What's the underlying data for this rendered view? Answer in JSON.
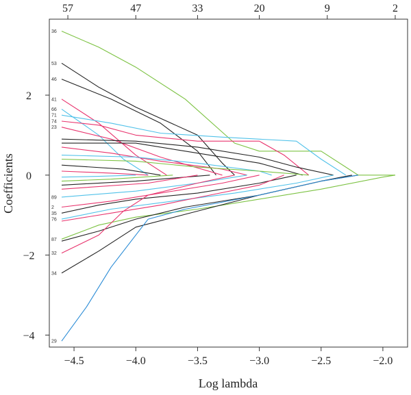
{
  "chart_data": {
    "type": "line",
    "title": "",
    "xlabel": "Log lambda",
    "ylabel": "Coefficients",
    "xlim": [
      -4.7,
      -1.8
    ],
    "ylim": [
      -4.3,
      3.9
    ],
    "x_ticks": [
      -4.5,
      -4.0,
      -3.5,
      -3.0,
      -2.5,
      -2.0
    ],
    "x_tick_labels": [
      "−4.5",
      "−4.0",
      "−3.5",
      "−3.0",
      "−2.5",
      "−2.0"
    ],
    "y_ticks": [
      -4,
      -2,
      0,
      2
    ],
    "y_tick_labels": [
      "−4",
      "−2",
      "0",
      "2"
    ],
    "top_ticks": [
      {
        "x": -4.55,
        "label": "57"
      },
      {
        "x": -4.0,
        "label": "47"
      },
      {
        "x": -3.5,
        "label": "33"
      },
      {
        "x": -3.0,
        "label": "20"
      },
      {
        "x": -2.45,
        "label": "9"
      },
      {
        "x": -1.9,
        "label": "2"
      }
    ],
    "grid": false,
    "legend": "none",
    "series": [
      {
        "label": "36",
        "color": "#7cc242",
        "x": [
          -4.6,
          -4.3,
          -4.0,
          -3.6,
          -3.2,
          -3.0,
          -2.5,
          -2.2,
          -1.9
        ],
        "values": [
          3.6,
          3.2,
          2.7,
          1.9,
          0.8,
          0.6,
          0.6,
          0.0,
          0.0
        ]
      },
      {
        "label": "53",
        "color": "#222222",
        "x": [
          -4.6,
          -4.3,
          -4.0,
          -3.5,
          -3.3,
          -3.2
        ],
        "values": [
          2.8,
          2.2,
          1.7,
          1.0,
          0.3,
          0.0
        ]
      },
      {
        "label": "46",
        "color": "#222222",
        "x": [
          -4.6,
          -4.2,
          -3.8,
          -3.5,
          -3.35
        ],
        "values": [
          2.4,
          1.9,
          1.3,
          0.6,
          0.0
        ]
      },
      {
        "label": "41",
        "color": "#e8336d",
        "x": [
          -4.6,
          -4.3,
          -4.0,
          -3.75
        ],
        "values": [
          1.9,
          1.3,
          0.5,
          0.0
        ]
      },
      {
        "label": "66",
        "color": "#4fc1e9",
        "x": [
          -4.6,
          -4.3,
          -4.1,
          -3.9
        ],
        "values": [
          1.65,
          1.0,
          0.4,
          0.0
        ]
      },
      {
        "label": "71",
        "color": "#4fc1e9",
        "x": [
          -4.6,
          -4.2,
          -3.8,
          -3.3,
          -2.7,
          -2.5,
          -2.3
        ],
        "values": [
          1.5,
          1.3,
          1.05,
          0.95,
          0.85,
          0.4,
          0.0
        ]
      },
      {
        "label": "74",
        "color": "#e8336d",
        "x": [
          -4.6,
          -4.3,
          -4.0,
          -3.5,
          -3.0,
          -2.8,
          -2.6
        ],
        "values": [
          1.35,
          1.25,
          1.0,
          0.85,
          0.85,
          0.5,
          0.0
        ]
      },
      {
        "label": "23",
        "color": "#e8336d",
        "x": [
          -4.6,
          -4.2,
          -3.8,
          -3.3
        ],
        "values": [
          1.2,
          0.9,
          0.45,
          0.0
        ]
      },
      {
        "label": "",
        "color": "#222222",
        "x": [
          -4.6,
          -4.0,
          -3.5,
          -3.0,
          -2.7,
          -2.4
        ],
        "values": [
          0.9,
          0.85,
          0.7,
          0.45,
          0.2,
          0.0
        ]
      },
      {
        "label": "",
        "color": "#222222",
        "x": [
          -4.6,
          -4.0,
          -3.5,
          -3.0,
          -2.65
        ],
        "values": [
          0.8,
          0.8,
          0.55,
          0.3,
          0.0
        ]
      },
      {
        "label": "",
        "color": "#e8336d",
        "x": [
          -4.6,
          -4.2,
          -3.8,
          -3.3,
          -3.1
        ],
        "values": [
          0.7,
          0.55,
          0.35,
          0.15,
          0.0
        ]
      },
      {
        "label": "",
        "color": "#4fc1e9",
        "x": [
          -4.6,
          -4.0,
          -3.5,
          -3.0,
          -2.9
        ],
        "values": [
          0.5,
          0.45,
          0.3,
          0.1,
          0.0
        ]
      },
      {
        "label": "",
        "color": "#7cc242",
        "x": [
          -4.6,
          -4.0,
          -3.5,
          -3.0,
          -2.6
        ],
        "values": [
          0.4,
          0.35,
          0.2,
          0.1,
          0.0
        ]
      },
      {
        "label": "",
        "color": "#222222",
        "x": [
          -4.6,
          -4.1,
          -3.8
        ],
        "values": [
          0.25,
          0.15,
          0.0
        ]
      },
      {
        "label": "",
        "color": "#e8336d",
        "x": [
          -4.6,
          -4.2,
          -3.9
        ],
        "values": [
          0.1,
          0.05,
          0.0
        ]
      },
      {
        "label": "",
        "color": "#4fc1e9",
        "x": [
          -4.6,
          -4.3,
          -4.0
        ],
        "values": [
          -0.05,
          -0.03,
          0.0
        ]
      },
      {
        "label": "",
        "color": "#7cc242",
        "x": [
          -4.6,
          -4.2,
          -3.7
        ],
        "values": [
          -0.15,
          -0.1,
          0.0
        ]
      },
      {
        "label": "",
        "color": "#222222",
        "x": [
          -4.6,
          -4.0,
          -3.4
        ],
        "values": [
          -0.25,
          -0.15,
          0.0
        ]
      },
      {
        "label": "",
        "color": "#e8336d",
        "x": [
          -4.6,
          -3.9,
          -3.5
        ],
        "values": [
          -0.35,
          -0.2,
          0.0
        ]
      },
      {
        "label": "89",
        "color": "#4fc1e9",
        "x": [
          -4.6,
          -4.0,
          -3.5,
          -3.1
        ],
        "values": [
          -0.55,
          -0.4,
          -0.2,
          0.0
        ]
      },
      {
        "label": "2",
        "color": "#e8336d",
        "x": [
          -4.6,
          -4.2,
          -3.8,
          -3.3,
          -3.0
        ],
        "values": [
          -0.8,
          -0.65,
          -0.45,
          -0.2,
          0.0
        ]
      },
      {
        "label": "35",
        "color": "#222222",
        "x": [
          -4.6,
          -4.3,
          -4.0,
          -3.5,
          -3.0,
          -2.7
        ],
        "values": [
          -0.95,
          -0.75,
          -0.6,
          -0.45,
          -0.2,
          0.0
        ]
      },
      {
        "label": "76",
        "color": "#4fc1e9",
        "x": [
          -4.6,
          -4.2,
          -3.7,
          -3.2,
          -2.7,
          -2.4
        ],
        "values": [
          -1.1,
          -0.85,
          -0.65,
          -0.45,
          -0.2,
          0.0
        ]
      },
      {
        "label": "",
        "color": "#e8336d",
        "x": [
          -4.6,
          -4.2,
          -3.8,
          -3.4,
          -3.0,
          -2.8
        ],
        "values": [
          -1.15,
          -0.95,
          -0.75,
          -0.5,
          -0.25,
          0.0
        ]
      },
      {
        "label": "87",
        "color": "#7cc242",
        "x": [
          -4.6,
          -4.3,
          -4.0,
          -3.5,
          -3.0,
          -2.5,
          -2.0,
          -1.9
        ],
        "values": [
          -1.6,
          -1.25,
          -1.05,
          -0.85,
          -0.6,
          -0.35,
          -0.05,
          0.0
        ]
      },
      {
        "label": "",
        "color": "#222222",
        "x": [
          -4.6,
          -4.3,
          -4.0,
          -3.6,
          -3.0,
          -2.5,
          -2.2
        ],
        "values": [
          -1.65,
          -1.4,
          -1.1,
          -0.8,
          -0.5,
          -0.15,
          0.0
        ]
      },
      {
        "label": "32",
        "color": "#e8336d",
        "x": [
          -4.6,
          -4.3,
          -4.1,
          -3.9,
          -3.5,
          -3.2
        ],
        "values": [
          -1.95,
          -1.5,
          -0.9,
          -0.5,
          -0.2,
          0.0
        ]
      },
      {
        "label": "34",
        "color": "#222222",
        "x": [
          -4.6,
          -4.3,
          -4.0,
          -3.5,
          -3.0,
          -2.5,
          -2.25
        ],
        "values": [
          -2.45,
          -1.9,
          -1.3,
          -0.9,
          -0.5,
          -0.15,
          0.0
        ]
      },
      {
        "label": "29",
        "color": "#2b8cd6",
        "x": [
          -4.6,
          -4.4,
          -4.2,
          -4.0,
          -3.9,
          -3.6,
          -3.0,
          -2.5,
          -2.2
        ],
        "values": [
          -4.15,
          -3.3,
          -2.3,
          -1.5,
          -1.1,
          -0.85,
          -0.5,
          -0.15,
          0.0
        ]
      }
    ]
  }
}
